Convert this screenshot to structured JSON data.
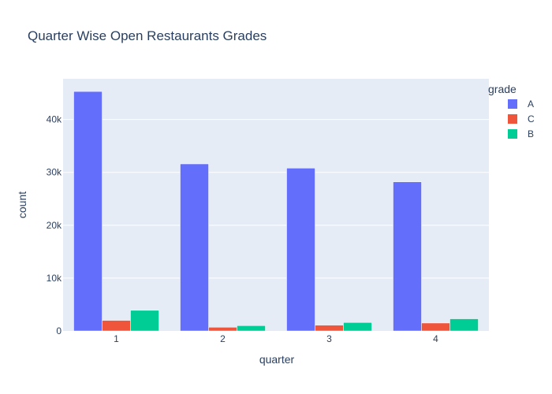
{
  "chart_data": {
    "type": "bar",
    "title": "Quarter Wise Open Restaurants Grades",
    "xlabel": "quarter",
    "ylabel": "count",
    "categories": [
      "1",
      "2",
      "3",
      "4"
    ],
    "series": [
      {
        "name": "A",
        "color": "#636efa",
        "values": [
          45300,
          31600,
          30800,
          28200
        ]
      },
      {
        "name": "C",
        "color": "#ef553b",
        "values": [
          2000,
          700,
          1100,
          1500
        ]
      },
      {
        "name": "B",
        "color": "#00cc96",
        "values": [
          3900,
          1000,
          1600,
          2300
        ]
      }
    ],
    "ylim": [
      0,
      47700
    ],
    "yticks": [
      {
        "value": 0,
        "label": "0"
      },
      {
        "value": 10000,
        "label": "10k"
      },
      {
        "value": 20000,
        "label": "20k"
      },
      {
        "value": 30000,
        "label": "30k"
      },
      {
        "value": 40000,
        "label": "40k"
      }
    ],
    "legend_title": "grade",
    "legend_position": "top-right",
    "grid": true,
    "plot_bg": "#e5ecf6"
  }
}
